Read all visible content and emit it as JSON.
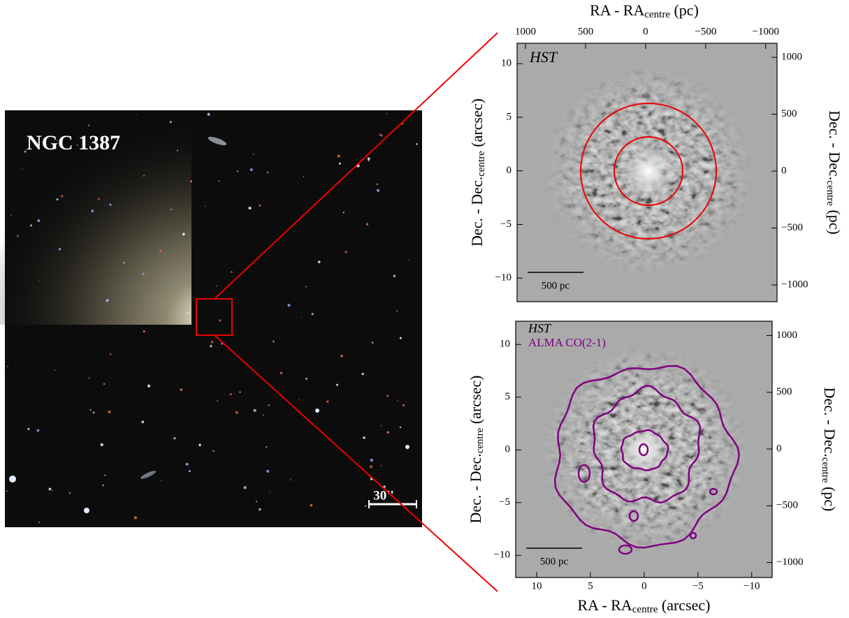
{
  "optical_image": {
    "label": "NGC 1387",
    "scale_bar": "30''"
  },
  "panels": [
    {
      "title": "HST",
      "scale_bar": "500 pc",
      "xlim": [
        11.8,
        -11.9
      ],
      "ylim": [
        -12.2,
        11.9
      ],
      "yticks": [
        10,
        5,
        0,
        {
          "value": -5,
          "label": "−5"
        },
        {
          "value": -10,
          "label": "−10"
        }
      ],
      "y2lim": [
        -1147,
        1123
      ],
      "y2ticks": [
        1000,
        500,
        0,
        {
          "value": -500,
          "label": "−500"
        },
        {
          "value": -1000,
          "label": "−1000"
        }
      ],
      "top_xlim": [
        1070,
        -1094
      ],
      "top_xticks": [
        1000,
        500,
        0,
        {
          "value": -500,
          "label": "−500"
        },
        {
          "value": -1000,
          "label": "−1000"
        }
      ],
      "top_xlabel": {
        "main": "RA - RA",
        "sub": "centre",
        "unit": " (pc)"
      },
      "ylabel": {
        "main": "Dec. - Dec.",
        "sub": "centre",
        "unit": " (arcsec)"
      },
      "y2label": {
        "main": "Dec. - Dec.",
        "sub": "centre",
        "unit": " (pc)"
      }
    },
    {
      "title": "HST",
      "legend": "ALMA CO(2-1)",
      "scale_bar": "500 pc",
      "xlim": [
        11.95,
        -11.9
      ],
      "ylim": [
        -12.1,
        12.2
      ],
      "xticks": [
        10,
        5,
        0,
        {
          "value": -5,
          "label": "−5"
        },
        {
          "value": -10,
          "label": "−10"
        }
      ],
      "yticks": [
        10,
        5,
        0,
        {
          "value": -5,
          "label": "−5"
        },
        {
          "value": -10,
          "label": "−10"
        }
      ],
      "y2lim": [
        -1132,
        1126
      ],
      "y2ticks": [
        1000,
        500,
        0,
        {
          "value": -500,
          "label": "−500"
        },
        {
          "value": -1000,
          "label": "−1000"
        }
      ],
      "xlabel": {
        "main": "RA - RA",
        "sub": "centre",
        "unit": " (arcsec)"
      },
      "ylabel": {
        "main": "Dec. - Dec.",
        "sub": "centre",
        "unit": " (arcsec)"
      },
      "y2label": {
        "main": "Dec. - Dec.",
        "sub": "centre",
        "unit": " (pc)"
      }
    }
  ]
}
